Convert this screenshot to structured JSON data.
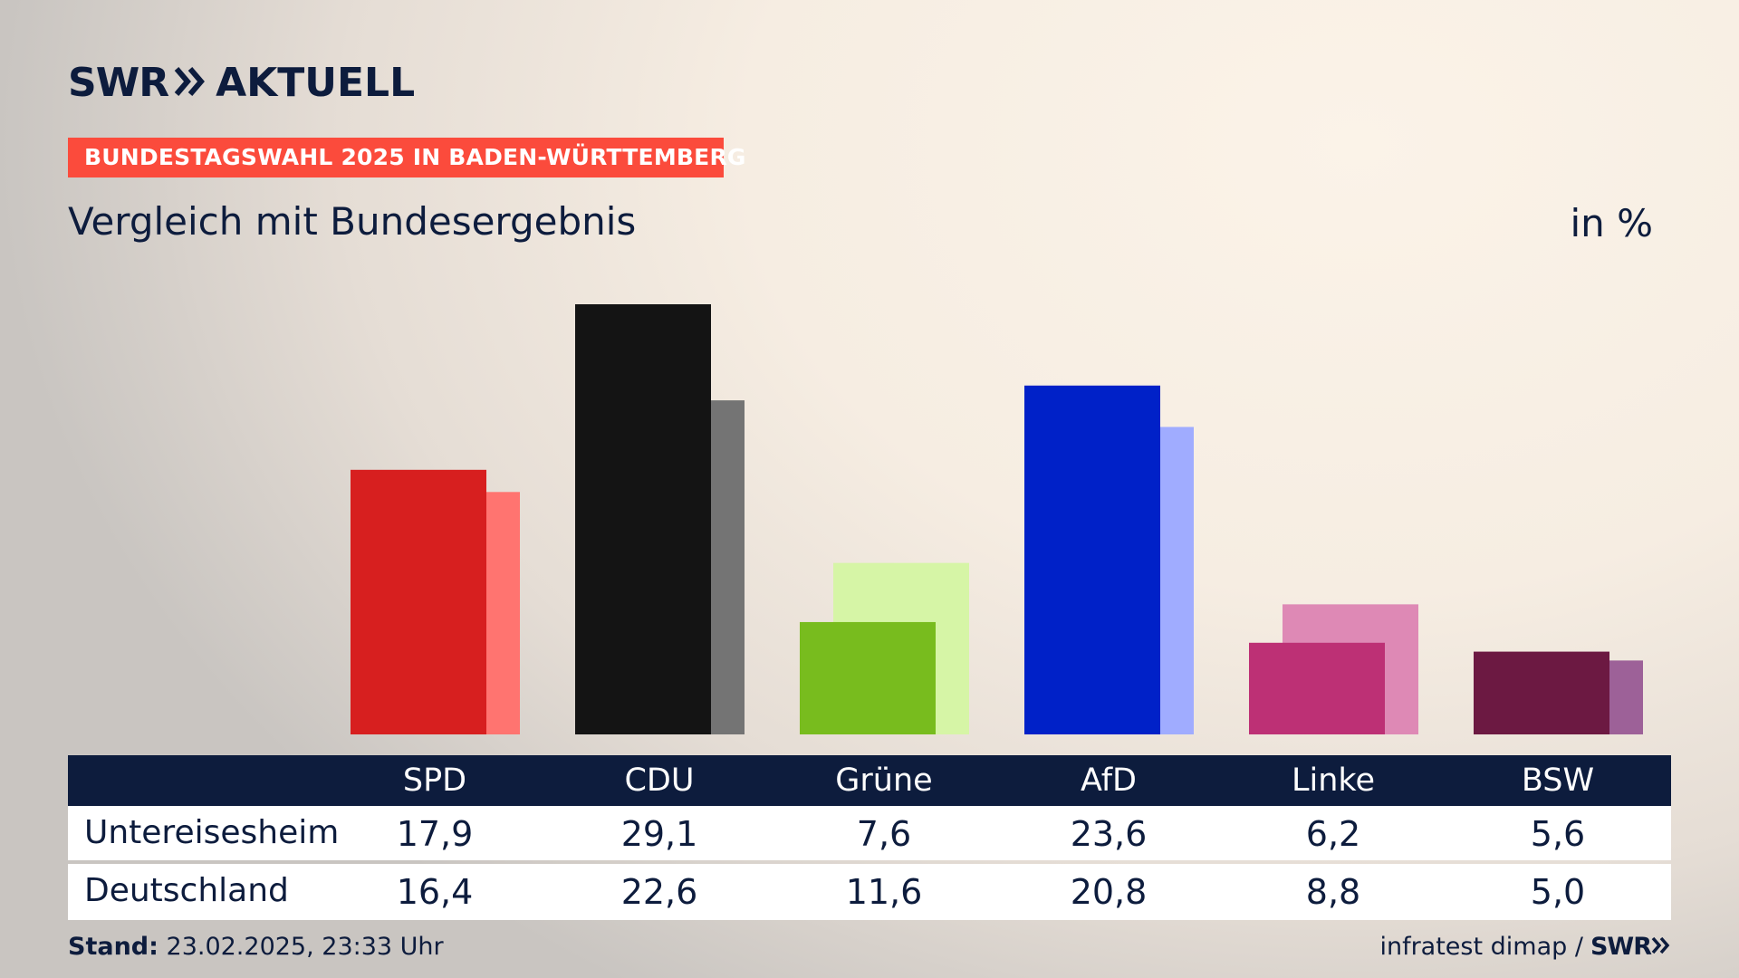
{
  "header": {
    "logo_left": "SWR",
    "logo_right": "AKTUELL",
    "banner": "BUNDESTAGSWAHL 2025 IN BADEN-WÜRTTEMBERG",
    "subtitle": "Vergleich mit Bundesergebnis",
    "unit": "in %"
  },
  "table": {
    "columns": [
      "SPD",
      "CDU",
      "Grüne",
      "AfD",
      "Linke",
      "BSW"
    ],
    "rows": [
      {
        "label": "Untereisesheim",
        "values": [
          "17,9",
          "29,1",
          "7,6",
          "23,6",
          "6,2",
          "5,6"
        ]
      },
      {
        "label": "Deutschland",
        "values": [
          "16,4",
          "22,6",
          "11,6",
          "20,8",
          "8,8",
          "5,0"
        ]
      }
    ]
  },
  "chart_data": {
    "type": "bar",
    "categories": [
      "SPD",
      "CDU",
      "Grüne",
      "AfD",
      "Linke",
      "BSW"
    ],
    "series": [
      {
        "name": "Untereisesheim",
        "values": [
          17.9,
          29.1,
          7.6,
          23.6,
          6.2,
          5.6
        ],
        "colors": [
          "#d71f1f",
          "#141414",
          "#78bc1e",
          "#0021c8",
          "#bd3075",
          "#6c1942"
        ]
      },
      {
        "name": "Deutschland",
        "values": [
          16.4,
          22.6,
          11.6,
          20.8,
          8.8,
          5.0
        ],
        "colors": [
          "#ff7470",
          "#747474",
          "#d6f5a6",
          "#a0acff",
          "#de89b5",
          "#9d6198"
        ]
      }
    ],
    "ylim": [
      0,
      29.1
    ],
    "grid": false,
    "xlabel": "",
    "ylabel": ""
  },
  "footer": {
    "stand_label": "Stand:",
    "stand_value": "23.02.2025, 23:33 Uhr",
    "source": "infratest dimap /",
    "source_logo": "SWR"
  },
  "colors": {
    "navy": "#0d1c3d",
    "banner": "#fb4b3c"
  }
}
